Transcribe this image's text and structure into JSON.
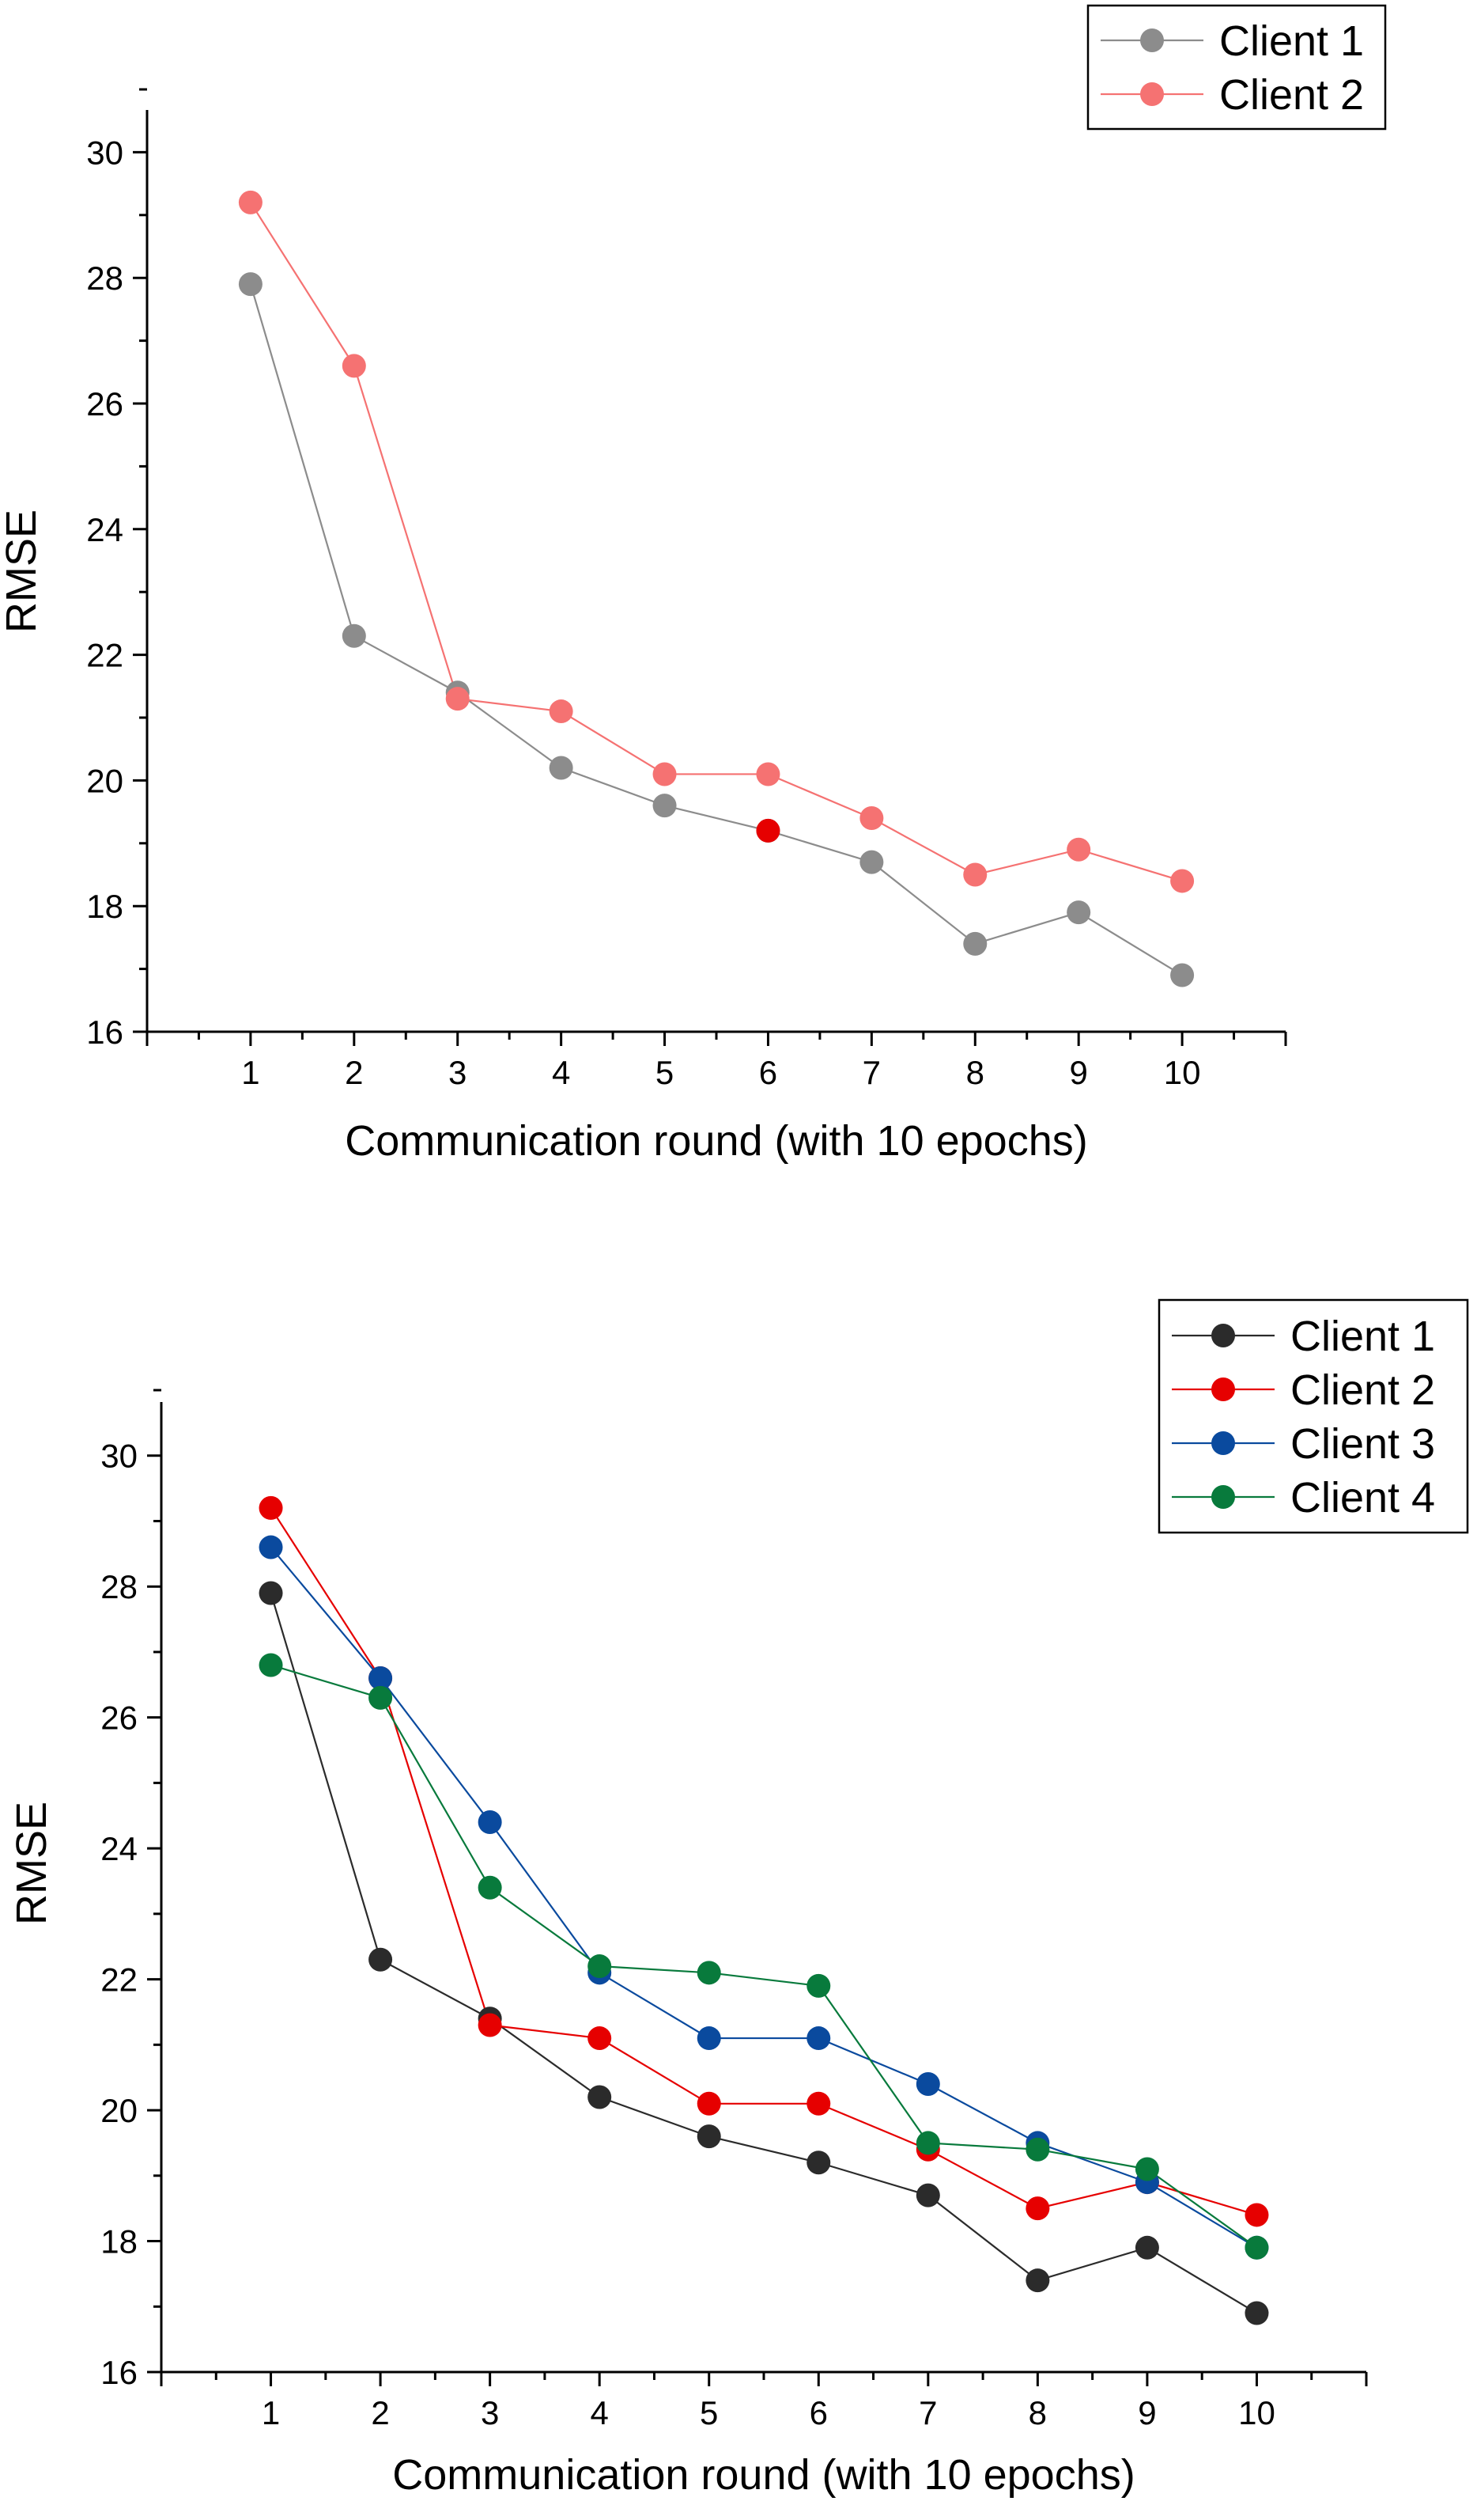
{
  "chart_data": [
    {
      "type": "line",
      "xlabel": "Communication round (with 10 epochs)",
      "ylabel": "RMSE",
      "x": [
        1,
        2,
        3,
        4,
        5,
        6,
        7,
        8,
        9,
        10
      ],
      "xticks": [
        "1",
        "2",
        "3",
        "4",
        "5",
        "6",
        "7",
        "8",
        "9",
        "10"
      ],
      "xlim": [
        0,
        11
      ],
      "yticks": [
        "16",
        "18",
        "20",
        "22",
        "24",
        "26",
        "28",
        "30"
      ],
      "ylim": [
        16,
        31
      ],
      "grid": false,
      "legend_position": "top-right",
      "series": [
        {
          "name": "Client 1",
          "color": "#8c8c8c",
          "values": [
            27.9,
            22.3,
            21.4,
            20.2,
            19.6,
            19.2,
            18.7,
            17.4,
            17.9,
            16.9
          ]
        },
        {
          "name": "Client 2",
          "color": "#f57272",
          "values": [
            29.2,
            26.6,
            21.3,
            21.1,
            20.1,
            20.1,
            19.4,
            18.5,
            18.9,
            18.4
          ]
        }
      ],
      "extra_markers": [
        {
          "x": 6,
          "y": 19.2,
          "color": "#e60000"
        }
      ]
    },
    {
      "type": "line",
      "xlabel": "Communication round (with 10 epochs)",
      "ylabel": "RMSE",
      "x": [
        1,
        2,
        3,
        4,
        5,
        6,
        7,
        8,
        9,
        10
      ],
      "xticks": [
        "1",
        "2",
        "3",
        "4",
        "5",
        "6",
        "7",
        "8",
        "9",
        "10"
      ],
      "xlim": [
        0,
        11
      ],
      "yticks": [
        "16",
        "18",
        "20",
        "22",
        "24",
        "26",
        "28",
        "30"
      ],
      "ylim": [
        16,
        31
      ],
      "grid": false,
      "legend_position": "top-right",
      "series": [
        {
          "name": "Client 1",
          "color": "#2b2b2b",
          "values": [
            27.9,
            22.3,
            21.4,
            20.2,
            19.6,
            19.2,
            18.7,
            17.4,
            17.9,
            16.9
          ]
        },
        {
          "name": "Client 2",
          "color": "#e60000",
          "values": [
            29.2,
            26.6,
            21.3,
            21.1,
            20.1,
            20.1,
            19.4,
            18.5,
            18.9,
            18.4
          ]
        },
        {
          "name": "Client 3",
          "color": "#0a4a9e",
          "values": [
            28.6,
            26.6,
            24.4,
            22.1,
            21.1,
            21.1,
            20.4,
            19.5,
            18.9,
            17.9
          ]
        },
        {
          "name": "Client 4",
          "color": "#087a3c",
          "values": [
            26.8,
            26.3,
            23.4,
            22.2,
            22.1,
            21.9,
            19.5,
            19.4,
            19.1,
            17.9
          ]
        }
      ],
      "extra_markers": []
    }
  ]
}
